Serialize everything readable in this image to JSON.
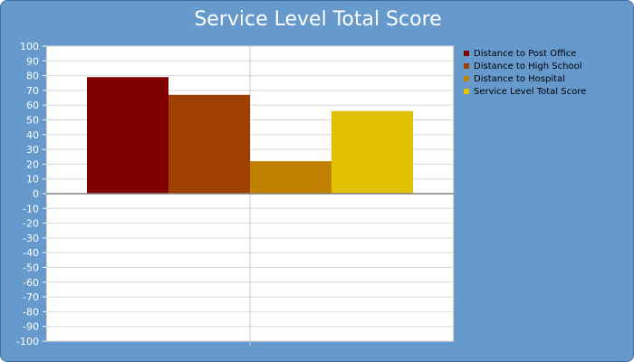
{
  "chart_data": {
    "type": "bar",
    "title": "Service Level Total Score",
    "xlabel": "",
    "ylabel": "",
    "ylim": [
      -100,
      100
    ],
    "ytick_step": 10,
    "yticks": [
      "100",
      "90",
      "80",
      "70",
      "60",
      "50",
      "40",
      "30",
      "20",
      "10",
      "0",
      "-10",
      "-20",
      "-30",
      "-40",
      "-50",
      "-60",
      "-70",
      "-80",
      "-90",
      "-100"
    ],
    "grid": true,
    "legend_position": "right",
    "series": [
      {
        "name": "Distance to Post Office",
        "value": 79,
        "color": "#800000"
      },
      {
        "name": "Distance to High School",
        "value": 67,
        "color": "#a04000"
      },
      {
        "name": "Distance to Hospital",
        "value": 22,
        "color": "#c08000"
      },
      {
        "name": "Service Level Total Score",
        "value": 56,
        "color": "#e0c000"
      }
    ]
  }
}
